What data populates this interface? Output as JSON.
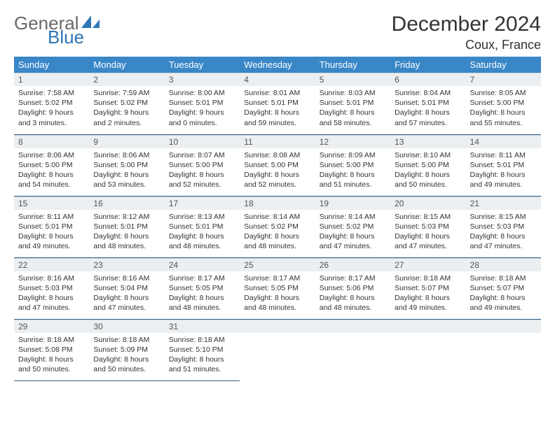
{
  "brand": {
    "part1": "General",
    "part2": "Blue"
  },
  "title": "December 2024",
  "location": "Coux, France",
  "colors": {
    "header_bg": "#3a87c8",
    "header_fg": "#ffffff",
    "daynum_bg": "#eceff1",
    "cell_border": "#2e5f8a",
    "brand_gray": "#6a6a6a",
    "brand_blue": "#2e76b6"
  },
  "weekdays": [
    "Sunday",
    "Monday",
    "Tuesday",
    "Wednesday",
    "Thursday",
    "Friday",
    "Saturday"
  ],
  "weeks": [
    [
      {
        "n": "1",
        "sr": "7:58 AM",
        "ss": "5:02 PM",
        "dl": "9 hours and 3 minutes."
      },
      {
        "n": "2",
        "sr": "7:59 AM",
        "ss": "5:02 PM",
        "dl": "9 hours and 2 minutes."
      },
      {
        "n": "3",
        "sr": "8:00 AM",
        "ss": "5:01 PM",
        "dl": "9 hours and 0 minutes."
      },
      {
        "n": "4",
        "sr": "8:01 AM",
        "ss": "5:01 PM",
        "dl": "8 hours and 59 minutes."
      },
      {
        "n": "5",
        "sr": "8:03 AM",
        "ss": "5:01 PM",
        "dl": "8 hours and 58 minutes."
      },
      {
        "n": "6",
        "sr": "8:04 AM",
        "ss": "5:01 PM",
        "dl": "8 hours and 57 minutes."
      },
      {
        "n": "7",
        "sr": "8:05 AM",
        "ss": "5:00 PM",
        "dl": "8 hours and 55 minutes."
      }
    ],
    [
      {
        "n": "8",
        "sr": "8:06 AM",
        "ss": "5:00 PM",
        "dl": "8 hours and 54 minutes."
      },
      {
        "n": "9",
        "sr": "8:06 AM",
        "ss": "5:00 PM",
        "dl": "8 hours and 53 minutes."
      },
      {
        "n": "10",
        "sr": "8:07 AM",
        "ss": "5:00 PM",
        "dl": "8 hours and 52 minutes."
      },
      {
        "n": "11",
        "sr": "8:08 AM",
        "ss": "5:00 PM",
        "dl": "8 hours and 52 minutes."
      },
      {
        "n": "12",
        "sr": "8:09 AM",
        "ss": "5:00 PM",
        "dl": "8 hours and 51 minutes."
      },
      {
        "n": "13",
        "sr": "8:10 AM",
        "ss": "5:00 PM",
        "dl": "8 hours and 50 minutes."
      },
      {
        "n": "14",
        "sr": "8:11 AM",
        "ss": "5:01 PM",
        "dl": "8 hours and 49 minutes."
      }
    ],
    [
      {
        "n": "15",
        "sr": "8:11 AM",
        "ss": "5:01 PM",
        "dl": "8 hours and 49 minutes."
      },
      {
        "n": "16",
        "sr": "8:12 AM",
        "ss": "5:01 PM",
        "dl": "8 hours and 48 minutes."
      },
      {
        "n": "17",
        "sr": "8:13 AM",
        "ss": "5:01 PM",
        "dl": "8 hours and 48 minutes."
      },
      {
        "n": "18",
        "sr": "8:14 AM",
        "ss": "5:02 PM",
        "dl": "8 hours and 48 minutes."
      },
      {
        "n": "19",
        "sr": "8:14 AM",
        "ss": "5:02 PM",
        "dl": "8 hours and 47 minutes."
      },
      {
        "n": "20",
        "sr": "8:15 AM",
        "ss": "5:03 PM",
        "dl": "8 hours and 47 minutes."
      },
      {
        "n": "21",
        "sr": "8:15 AM",
        "ss": "5:03 PM",
        "dl": "8 hours and 47 minutes."
      }
    ],
    [
      {
        "n": "22",
        "sr": "8:16 AM",
        "ss": "5:03 PM",
        "dl": "8 hours and 47 minutes."
      },
      {
        "n": "23",
        "sr": "8:16 AM",
        "ss": "5:04 PM",
        "dl": "8 hours and 47 minutes."
      },
      {
        "n": "24",
        "sr": "8:17 AM",
        "ss": "5:05 PM",
        "dl": "8 hours and 48 minutes."
      },
      {
        "n": "25",
        "sr": "8:17 AM",
        "ss": "5:05 PM",
        "dl": "8 hours and 48 minutes."
      },
      {
        "n": "26",
        "sr": "8:17 AM",
        "ss": "5:06 PM",
        "dl": "8 hours and 48 minutes."
      },
      {
        "n": "27",
        "sr": "8:18 AM",
        "ss": "5:07 PM",
        "dl": "8 hours and 49 minutes."
      },
      {
        "n": "28",
        "sr": "8:18 AM",
        "ss": "5:07 PM",
        "dl": "8 hours and 49 minutes."
      }
    ],
    [
      {
        "n": "29",
        "sr": "8:18 AM",
        "ss": "5:08 PM",
        "dl": "8 hours and 50 minutes."
      },
      {
        "n": "30",
        "sr": "8:18 AM",
        "ss": "5:09 PM",
        "dl": "8 hours and 50 minutes."
      },
      {
        "n": "31",
        "sr": "8:18 AM",
        "ss": "5:10 PM",
        "dl": "8 hours and 51 minutes."
      },
      null,
      null,
      null,
      null
    ]
  ],
  "labels": {
    "sunrise": "Sunrise:",
    "sunset": "Sunset:",
    "daylight": "Daylight:"
  }
}
